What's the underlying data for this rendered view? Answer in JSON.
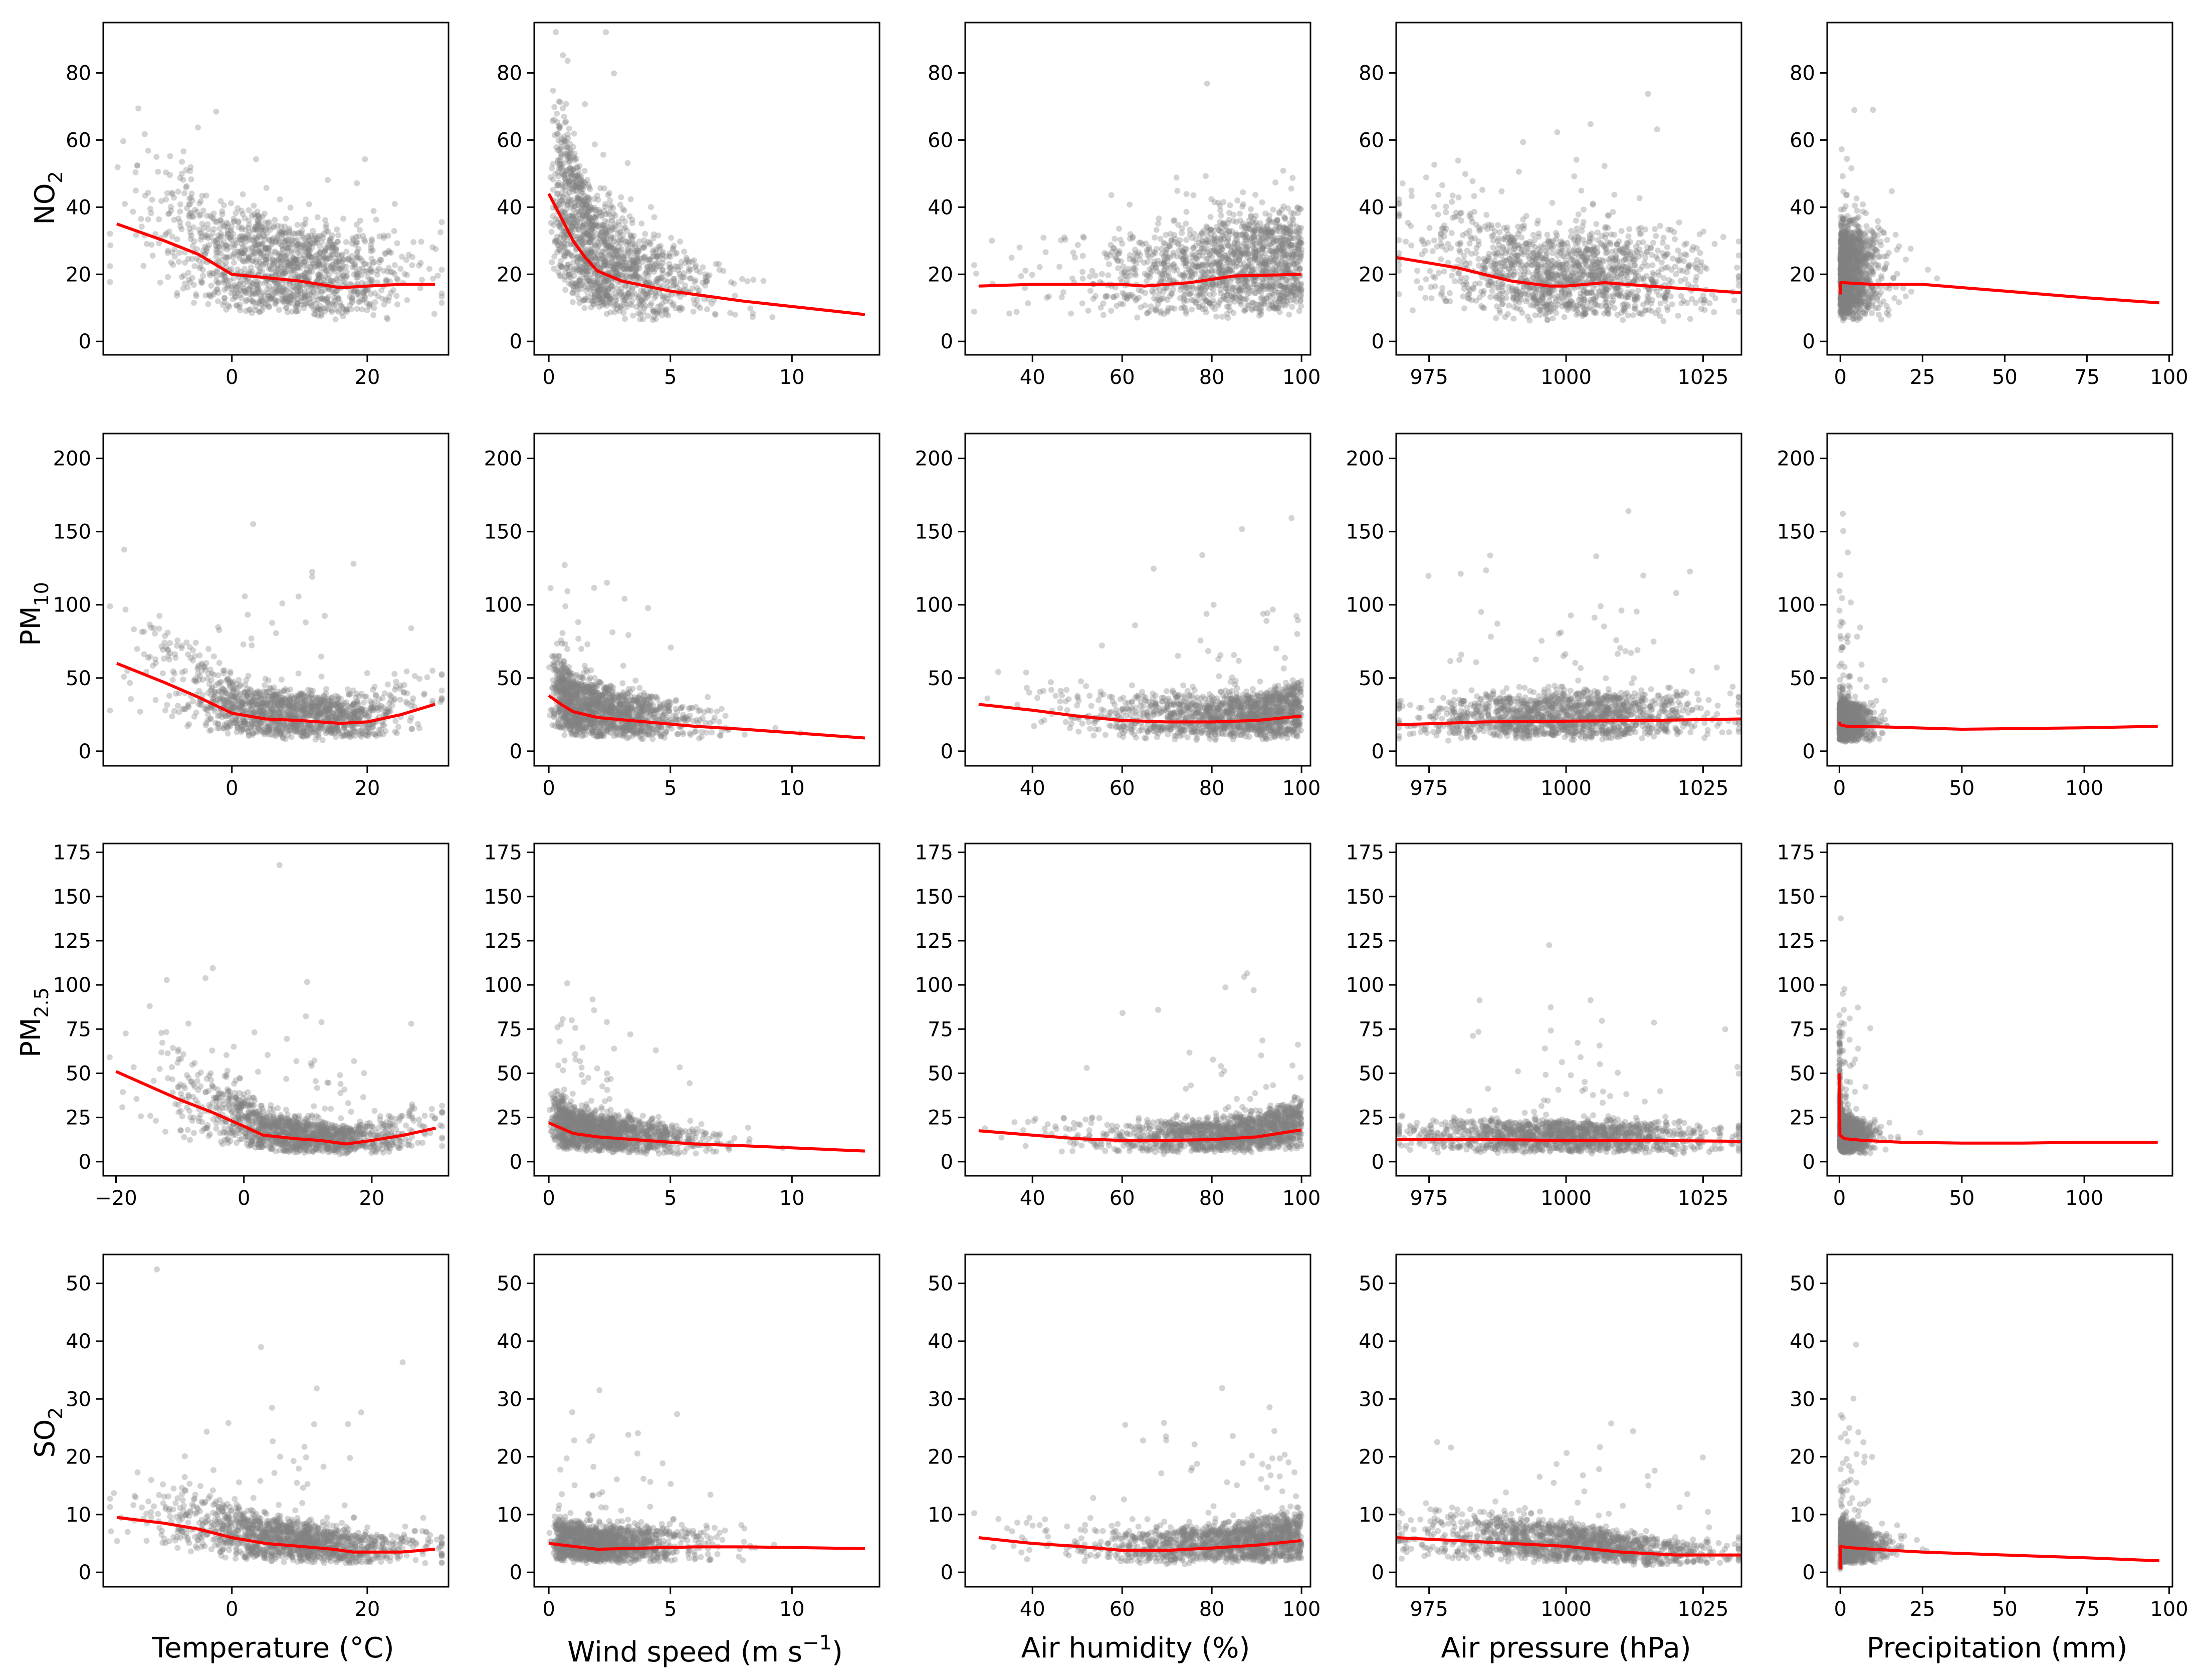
{
  "figure": {
    "title": "",
    "row_labels": [
      {
        "base": "NO",
        "sub": "2"
      },
      {
        "base": "PM",
        "sub": "10"
      },
      {
        "base": "PM",
        "sub": "2.5"
      },
      {
        "base": "SO",
        "sub": "2"
      }
    ],
    "column_labels": [
      {
        "text": "Temperature (°C)"
      },
      {
        "text": "Wind speed (m s",
        "sup": "−1",
        "tail": ")"
      },
      {
        "text": "Air humidity (%)"
      },
      {
        "text": "Air pressure (hPa)"
      },
      {
        "text": "Precipitation (mm)"
      }
    ],
    "colors": {
      "points": "#808080",
      "fit_line": "#ff0000",
      "axes": "#000000",
      "background": "#ffffff"
    }
  },
  "chart_data": [
    {
      "type": "scatter",
      "row": 0,
      "col": 0,
      "pollutant": "NO2",
      "variable": "Temperature (°C)",
      "xlim": [
        -19,
        32
      ],
      "ylim": [
        -4,
        95
      ],
      "xticks": [
        0,
        20
      ],
      "yticks": [
        0,
        20,
        40,
        60,
        80
      ],
      "scatter_profile": "temp_no2",
      "trend": {
        "x": [
          -17,
          -10,
          -5,
          0,
          5,
          10,
          13,
          16,
          20,
          25,
          30
        ],
        "y": [
          35,
          30,
          26,
          20,
          19,
          18,
          17,
          16,
          16.5,
          17,
          17
        ]
      }
    },
    {
      "type": "scatter",
      "row": 0,
      "col": 1,
      "pollutant": "NO2",
      "variable": "Wind speed (m s−1)",
      "xlim": [
        -0.6,
        13.6
      ],
      "ylim": [
        -4,
        95
      ],
      "xticks": [
        0,
        5,
        10
      ],
      "yticks": [
        0,
        20,
        40,
        60,
        80
      ],
      "scatter_profile": "wind_no2",
      "trend": {
        "x": [
          0,
          0.5,
          1,
          1.5,
          2,
          3,
          5,
          8,
          13
        ],
        "y": [
          44,
          37,
          30,
          25,
          21,
          18,
          15,
          12,
          8
        ]
      }
    },
    {
      "type": "scatter",
      "row": 0,
      "col": 2,
      "pollutant": "NO2",
      "variable": "Air humidity (%)",
      "xlim": [
        25,
        102
      ],
      "ylim": [
        -4,
        95
      ],
      "xticks": [
        40,
        60,
        80,
        100
      ],
      "yticks": [
        0,
        20,
        40,
        60,
        80
      ],
      "scatter_profile": "hum_no2",
      "trend": {
        "x": [
          28,
          40,
          50,
          60,
          65,
          75,
          85,
          100
        ],
        "y": [
          16.5,
          17,
          17,
          17,
          16.5,
          17.5,
          19.5,
          20
        ]
      }
    },
    {
      "type": "scatter",
      "row": 0,
      "col": 3,
      "pollutant": "NO2",
      "variable": "Air pressure (hPa)",
      "xlim": [
        969,
        1032
      ],
      "ylim": [
        -4,
        95
      ],
      "xticks": [
        975,
        1000,
        1025
      ],
      "yticks": [
        0,
        20,
        40,
        60,
        80
      ],
      "scatter_profile": "pres_no2",
      "trend": {
        "x": [
          969,
          980,
          990,
          997,
          1000,
          1007,
          1015,
          1032
        ],
        "y": [
          25,
          22,
          18,
          16.5,
          16.5,
          17.5,
          16.5,
          14.5
        ]
      }
    },
    {
      "type": "scatter",
      "row": 0,
      "col": 4,
      "pollutant": "NO2",
      "variable": "Precipitation (mm)",
      "xlim": [
        -4,
        101
      ],
      "ylim": [
        -4,
        95
      ],
      "xticks": [
        0,
        25,
        50,
        75,
        100
      ],
      "yticks": [
        0,
        20,
        40,
        60,
        80
      ],
      "scatter_profile": "prec_no2",
      "trend": {
        "x": [
          0,
          0.1,
          1,
          10,
          25,
          50,
          75,
          97
        ],
        "y": [
          14,
          17.5,
          17.5,
          17,
          17,
          15,
          13,
          11.5
        ]
      }
    },
    {
      "type": "scatter",
      "row": 1,
      "col": 0,
      "pollutant": "PM10",
      "variable": "Temperature (°C)",
      "xlim": [
        -19,
        32
      ],
      "ylim": [
        -10,
        217
      ],
      "xticks": [
        0,
        20
      ],
      "yticks": [
        0,
        50,
        100,
        150,
        200
      ],
      "scatter_profile": "temp_pm10",
      "trend": {
        "x": [
          -17,
          -10,
          -5,
          0,
          5,
          10,
          16,
          20,
          25,
          30
        ],
        "y": [
          60,
          47,
          37,
          26,
          22,
          21,
          19,
          20,
          25,
          32
        ]
      }
    },
    {
      "type": "scatter",
      "row": 1,
      "col": 1,
      "pollutant": "PM10",
      "variable": "Wind speed (m s−1)",
      "xlim": [
        -0.6,
        13.6
      ],
      "ylim": [
        -10,
        217
      ],
      "xticks": [
        0,
        5,
        10
      ],
      "yticks": [
        0,
        50,
        100,
        150,
        200
      ],
      "scatter_profile": "wind_pm10",
      "trend": {
        "x": [
          0,
          0.5,
          1,
          2,
          4,
          6,
          8,
          13
        ],
        "y": [
          38,
          32,
          27,
          23,
          20,
          17,
          15,
          9
        ]
      }
    },
    {
      "type": "scatter",
      "row": 1,
      "col": 2,
      "pollutant": "PM10",
      "variable": "Air humidity (%)",
      "xlim": [
        25,
        102
      ],
      "ylim": [
        -10,
        217
      ],
      "xticks": [
        40,
        60,
        80,
        100
      ],
      "yticks": [
        0,
        50,
        100,
        150,
        200
      ],
      "scatter_profile": "hum_pm10",
      "trend": {
        "x": [
          28,
          40,
          50,
          60,
          70,
          80,
          90,
          100
        ],
        "y": [
          32,
          28,
          24,
          21,
          20,
          20,
          21,
          24
        ]
      }
    },
    {
      "type": "scatter",
      "row": 1,
      "col": 3,
      "pollutant": "PM10",
      "variable": "Air pressure (hPa)",
      "xlim": [
        969,
        1032
      ],
      "ylim": [
        -10,
        217
      ],
      "xticks": [
        975,
        1000,
        1025
      ],
      "yticks": [
        0,
        50,
        100,
        150,
        200
      ],
      "scatter_profile": "pres_pm10",
      "trend": {
        "x": [
          969,
          985,
          1000,
          1015,
          1032
        ],
        "y": [
          18,
          20,
          20.5,
          21,
          22
        ]
      }
    },
    {
      "type": "scatter",
      "row": 1,
      "col": 4,
      "pollutant": "PM10",
      "variable": "Precipitation (mm)",
      "xlim": [
        -5,
        136
      ],
      "ylim": [
        -10,
        217
      ],
      "xticks": [
        0,
        50,
        100
      ],
      "yticks": [
        0,
        50,
        100,
        150,
        200
      ],
      "scatter_profile": "prec_pm10",
      "trend": {
        "x": [
          0,
          0.3,
          3,
          20,
          50,
          75,
          100,
          130
        ],
        "y": [
          20,
          18,
          17,
          16.5,
          15,
          15.5,
          16,
          17
        ]
      }
    },
    {
      "type": "scatter",
      "row": 2,
      "col": 0,
      "pollutant": "PM2.5",
      "variable": "Temperature (°C)",
      "xlim": [
        -22,
        32
      ],
      "ylim": [
        -8,
        180
      ],
      "xticks": [
        -20,
        0,
        20
      ],
      "yticks": [
        0,
        25,
        50,
        75,
        100,
        125,
        150,
        175
      ],
      "scatter_profile": "temp_pm25",
      "trend": {
        "x": [
          -20,
          -15,
          -10,
          -5,
          0,
          3,
          8,
          12,
          16,
          20,
          25,
          30
        ],
        "y": [
          51,
          43,
          35,
          28,
          20,
          15,
          13,
          12,
          10,
          12,
          15,
          19
        ]
      }
    },
    {
      "type": "scatter",
      "row": 2,
      "col": 1,
      "pollutant": "PM2.5",
      "variable": "Wind speed (m s−1)",
      "xlim": [
        -0.6,
        13.6
      ],
      "ylim": [
        -8,
        180
      ],
      "xticks": [
        0,
        5,
        10
      ],
      "yticks": [
        0,
        25,
        50,
        75,
        100,
        125,
        150,
        175
      ],
      "scatter_profile": "wind_pm25",
      "trend": {
        "x": [
          0,
          0.5,
          1,
          2,
          4,
          6,
          8,
          13
        ],
        "y": [
          22,
          19,
          16,
          14,
          12,
          10,
          9,
          6
        ]
      }
    },
    {
      "type": "scatter",
      "row": 2,
      "col": 2,
      "pollutant": "PM2.5",
      "variable": "Air humidity (%)",
      "xlim": [
        25,
        102
      ],
      "ylim": [
        -8,
        180
      ],
      "xticks": [
        40,
        60,
        80,
        100
      ],
      "yticks": [
        0,
        25,
        50,
        75,
        100,
        125,
        150,
        175
      ],
      "scatter_profile": "hum_pm25",
      "trend": {
        "x": [
          28,
          40,
          50,
          60,
          70,
          80,
          90,
          100
        ],
        "y": [
          17.5,
          15,
          13,
          12,
          12,
          12.5,
          14,
          18
        ]
      }
    },
    {
      "type": "scatter",
      "row": 2,
      "col": 3,
      "pollutant": "PM2.5",
      "variable": "Air pressure (hPa)",
      "xlim": [
        969,
        1032
      ],
      "ylim": [
        -8,
        180
      ],
      "xticks": [
        975,
        1000,
        1025
      ],
      "yticks": [
        0,
        25,
        50,
        75,
        100,
        125,
        150,
        175
      ],
      "scatter_profile": "pres_pm25",
      "trend": {
        "x": [
          969,
          985,
          1000,
          1015,
          1032
        ],
        "y": [
          12.5,
          12.5,
          12,
          12,
          11.5
        ]
      }
    },
    {
      "type": "scatter",
      "row": 2,
      "col": 4,
      "pollutant": "PM2.5",
      "variable": "Precipitation (mm)",
      "xlim": [
        -5,
        136
      ],
      "ylim": [
        -8,
        180
      ],
      "xticks": [
        0,
        50,
        100
      ],
      "yticks": [
        0,
        25,
        50,
        75,
        100,
        125,
        150,
        175
      ],
      "scatter_profile": "prec_pm25",
      "trend": {
        "x": [
          0,
          0.2,
          2,
          10,
          25,
          50,
          75,
          100,
          130
        ],
        "y": [
          50,
          15,
          13,
          12,
          11,
          10.5,
          10.5,
          11,
          11
        ]
      }
    },
    {
      "type": "scatter",
      "row": 3,
      "col": 0,
      "pollutant": "SO2",
      "variable": "Temperature (°C)",
      "xlim": [
        -19,
        32
      ],
      "ylim": [
        -2.5,
        55
      ],
      "xticks": [
        0,
        20
      ],
      "yticks": [
        0,
        10,
        20,
        30,
        40,
        50
      ],
      "scatter_profile": "temp_so2",
      "trend": {
        "x": [
          -17,
          -10,
          -5,
          0,
          5,
          10,
          15,
          18,
          20,
          25,
          30
        ],
        "y": [
          9.5,
          8.5,
          7.5,
          6,
          5,
          4.5,
          4,
          3.5,
          3.5,
          3.5,
          4
        ]
      }
    },
    {
      "type": "scatter",
      "row": 3,
      "col": 1,
      "pollutant": "SO2",
      "variable": "Wind speed (m s−1)",
      "xlim": [
        -0.6,
        13.6
      ],
      "ylim": [
        -2.5,
        55
      ],
      "xticks": [
        0,
        5,
        10
      ],
      "yticks": [
        0,
        10,
        20,
        30,
        40,
        50
      ],
      "scatter_profile": "wind_so2",
      "trend": {
        "x": [
          0,
          1,
          2,
          4,
          6,
          8,
          10,
          13
        ],
        "y": [
          5,
          4.5,
          4,
          4.2,
          4.4,
          4.4,
          4.3,
          4.1
        ]
      }
    },
    {
      "type": "scatter",
      "row": 3,
      "col": 2,
      "pollutant": "SO2",
      "variable": "Air humidity (%)",
      "xlim": [
        25,
        102
      ],
      "ylim": [
        -2.5,
        55
      ],
      "xticks": [
        40,
        60,
        80,
        100
      ],
      "yticks": [
        0,
        10,
        20,
        30,
        40,
        50
      ],
      "scatter_profile": "hum_so2",
      "trend": {
        "x": [
          28,
          40,
          50,
          60,
          70,
          80,
          90,
          100
        ],
        "y": [
          6,
          5,
          4.5,
          3.8,
          3.8,
          4.2,
          4.7,
          5.5
        ]
      }
    },
    {
      "type": "scatter",
      "row": 3,
      "col": 3,
      "pollutant": "SO2",
      "variable": "Air pressure (hPa)",
      "xlim": [
        969,
        1032
      ],
      "ylim": [
        -2.5,
        55
      ],
      "xticks": [
        975,
        1000,
        1025
      ],
      "yticks": [
        0,
        10,
        20,
        30,
        40,
        50
      ],
      "scatter_profile": "pres_so2",
      "trend": {
        "x": [
          969,
          980,
          990,
          1000,
          1010,
          1020,
          1032
        ],
        "y": [
          6,
          5.5,
          5,
          4.5,
          3.5,
          3,
          3
        ]
      }
    },
    {
      "type": "scatter",
      "row": 3,
      "col": 4,
      "pollutant": "SO2",
      "variable": "Precipitation (mm)",
      "xlim": [
        -4,
        101
      ],
      "ylim": [
        -2.5,
        55
      ],
      "xticks": [
        0,
        25,
        50,
        75,
        100
      ],
      "yticks": [
        0,
        10,
        20,
        30,
        40,
        50
      ],
      "scatter_profile": "prec_so2",
      "trend": {
        "x": [
          0,
          0.1,
          2,
          10,
          25,
          50,
          75,
          97
        ],
        "y": [
          0.5,
          4.5,
          4.3,
          4,
          3.5,
          3,
          2.5,
          2
        ]
      }
    }
  ]
}
